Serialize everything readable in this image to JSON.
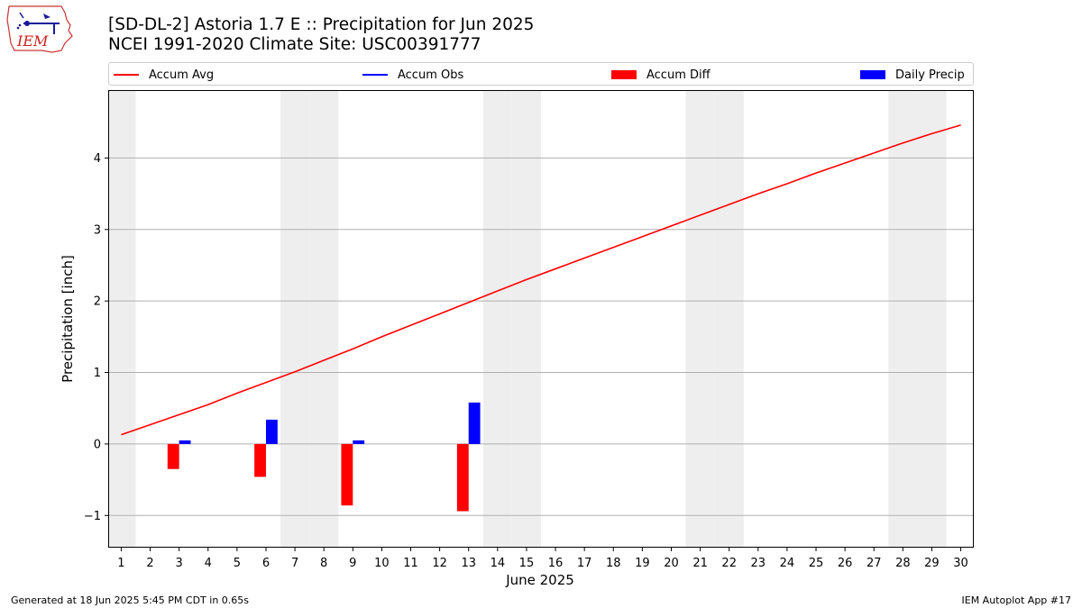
{
  "logo": {
    "text": "IEM"
  },
  "header": {
    "title_line1": "[SD-DL-2] Astoria 1.7 E :: Precipitation for Jun 2025",
    "title_line2": "NCEI 1991-2020 Climate Site: USC00391777"
  },
  "legend": {
    "placement": "top",
    "items": [
      {
        "label": "Accum Avg",
        "kind": "line",
        "color": "#ff0000"
      },
      {
        "label": "Accum Obs",
        "kind": "line",
        "color": "#0000ff"
      },
      {
        "label": "Accum Diff",
        "kind": "bar",
        "color": "#ff0000"
      },
      {
        "label": "Daily Precip",
        "kind": "bar",
        "color": "#0000ff"
      }
    ]
  },
  "chart_data": {
    "type": "bar",
    "xlabel": "June 2025",
    "ylabel": "Precipitation [inch]",
    "ylim": [
      -1.45,
      4.95
    ],
    "yticks": [
      -1,
      0,
      1,
      2,
      3,
      4
    ],
    "ytick_labels": [
      "−1",
      "0",
      "1",
      "2",
      "3",
      "4"
    ],
    "grid": "horizontal",
    "x": [
      1,
      2,
      3,
      4,
      5,
      6,
      7,
      8,
      9,
      10,
      11,
      12,
      13,
      14,
      15,
      16,
      17,
      18,
      19,
      20,
      21,
      22,
      23,
      24,
      25,
      26,
      27,
      28,
      29,
      30
    ],
    "weekend_days": [
      1,
      7,
      8,
      14,
      15,
      21,
      22,
      28,
      29
    ],
    "series": [
      {
        "name": "Accum Avg",
        "type": "line",
        "color": "#ff0000",
        "values": [
          0.13,
          0.27,
          0.41,
          0.55,
          0.71,
          0.86,
          1.01,
          1.17,
          1.33,
          1.5,
          1.66,
          1.82,
          1.98,
          2.14,
          2.3,
          2.45,
          2.6,
          2.75,
          2.9,
          3.05,
          3.2,
          3.35,
          3.5,
          3.64,
          3.79,
          3.93,
          4.07,
          4.21,
          4.34,
          4.46
        ]
      },
      {
        "name": "Accum Diff",
        "type": "bar",
        "color": "#ff0000",
        "values": {
          "3": -0.35,
          "6": -0.46,
          "9": -0.86,
          "13": -0.94
        }
      },
      {
        "name": "Daily Precip",
        "type": "bar",
        "color": "#0000ff",
        "values": {
          "3": 0.05,
          "6": 0.34,
          "9": 0.05,
          "13": 0.58
        }
      }
    ]
  },
  "footer": {
    "left": "Generated at 18 Jun 2025 5:45 PM CDT in 0.65s",
    "right": "IEM Autoplot App #17"
  }
}
